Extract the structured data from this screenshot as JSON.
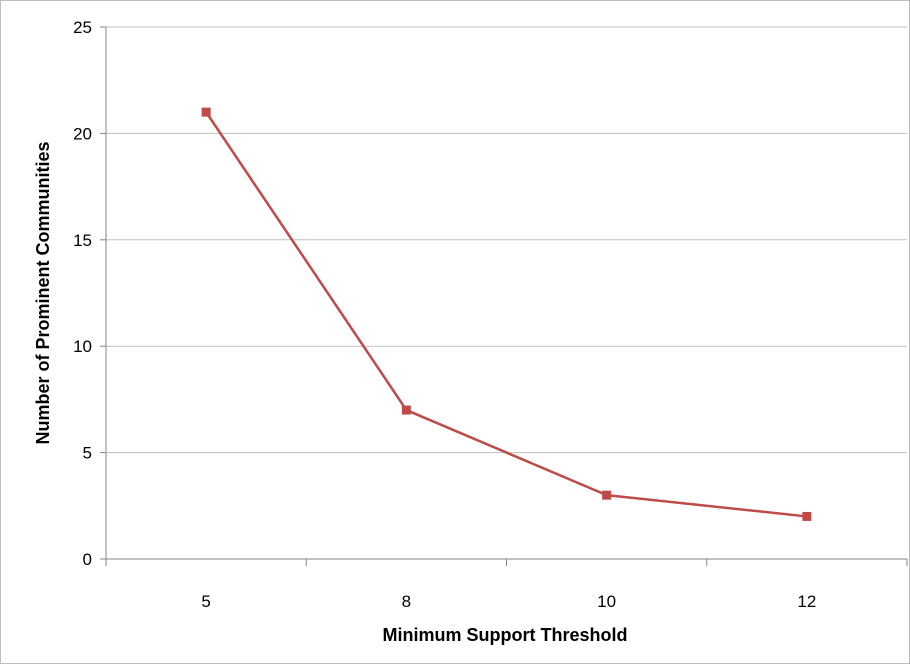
{
  "chart_data": {
    "type": "line",
    "title": "",
    "xlabel": "Minimum Support Threshold",
    "ylabel": "Number of Prominent Communities",
    "categories": [
      "5",
      "8",
      "10",
      "12"
    ],
    "series": [
      {
        "values": [
          21,
          7,
          3,
          2
        ],
        "color": "#be4b48",
        "marker": "square"
      }
    ],
    "ylim": [
      0,
      25
    ],
    "y_ticks": [
      "0",
      "5",
      "10",
      "15",
      "20",
      "25"
    ],
    "grid": "horizontal",
    "legend": "none"
  },
  "colors": {
    "gridline": "#c0c0c0",
    "axis": "#868686",
    "series": "#be4b48"
  }
}
